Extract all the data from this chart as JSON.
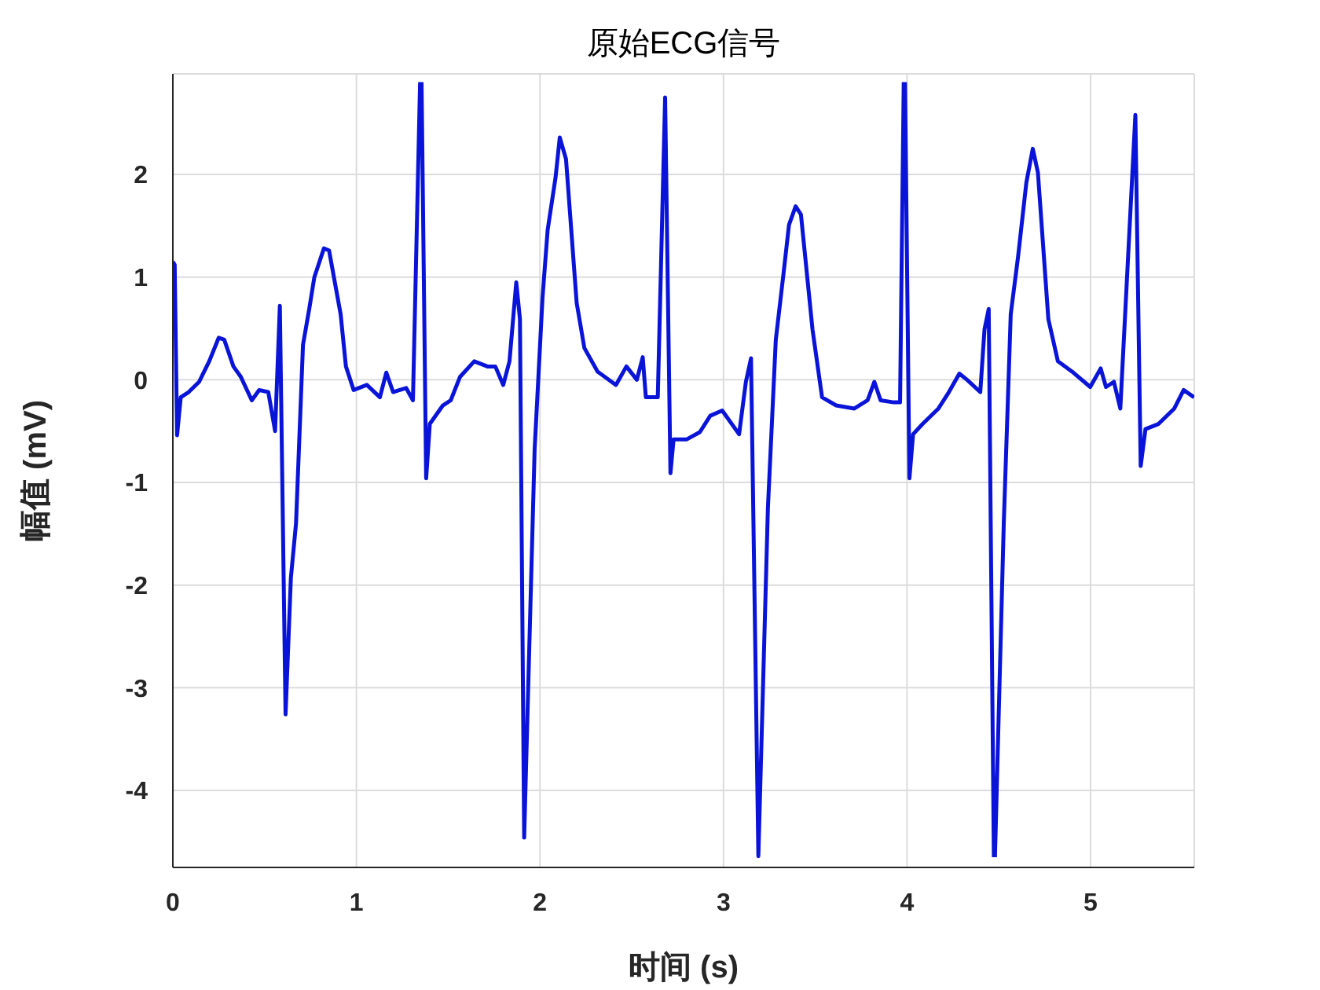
{
  "chart_data": {
    "type": "line",
    "title": "原始ECG信号",
    "xlabel": "时间 (s)",
    "ylabel": "幅值 (mV)",
    "x": [
      0,
      0.01,
      0.023,
      0.043,
      0.086,
      0.143,
      0.198,
      0.25,
      0.28,
      0.33,
      0.37,
      0.43,
      0.47,
      0.52,
      0.557,
      0.583,
      0.614,
      0.643,
      0.671,
      0.709,
      0.743,
      0.771,
      0.823,
      0.851,
      0.914,
      0.943,
      0.985,
      1.057,
      1.128,
      1.163,
      1.2,
      1.271,
      1.308,
      1.347,
      1.351,
      1.355,
      1.38,
      1.4,
      1.471,
      1.514,
      1.565,
      1.642,
      1.714,
      1.757,
      1.8,
      1.834,
      1.871,
      1.891,
      1.914,
      1.971,
      2.014,
      2.042,
      2.085,
      2.108,
      2.142,
      2.2,
      2.242,
      2.314,
      2.414,
      2.471,
      2.528,
      2.56,
      2.577,
      2.642,
      2.682,
      2.711,
      2.728,
      2.8,
      2.871,
      2.928,
      2.993,
      3.085,
      3.122,
      3.15,
      3.19,
      3.242,
      3.285,
      3.328,
      3.357,
      3.393,
      3.422,
      3.485,
      3.537,
      3.614,
      3.713,
      3.785,
      3.822,
      3.856,
      3.928,
      3.962,
      3.982,
      3.985,
      3.989,
      4.013,
      4.033,
      4.085,
      4.171,
      4.228,
      4.285,
      4.327,
      4.399,
      4.422,
      4.445,
      4.473,
      4.476,
      4.479,
      4.527,
      4.565,
      4.605,
      4.65,
      4.685,
      4.713,
      4.77,
      4.822,
      4.899,
      4.998,
      5.055,
      5.084,
      5.127,
      5.162,
      5.244,
      5.273,
      5.299,
      5.37,
      5.456,
      5.507,
      5.564
    ],
    "values": [
      1.15,
      1.12,
      -0.54,
      -0.17,
      -0.12,
      -0.02,
      0.18,
      0.41,
      0.39,
      0.13,
      0.03,
      -0.2,
      -0.1,
      -0.12,
      -0.5,
      0.72,
      -3.26,
      -1.93,
      -1.4,
      0.34,
      0.69,
      1.0,
      1.28,
      1.26,
      0.64,
      0.13,
      -0.1,
      -0.05,
      -0.17,
      0.07,
      -0.12,
      -0.08,
      -0.2,
      2.9,
      null,
      2.9,
      -0.96,
      -0.43,
      -0.25,
      -0.2,
      0.03,
      0.18,
      0.13,
      0.13,
      -0.05,
      0.18,
      0.95,
      0.59,
      -4.46,
      -0.68,
      0.8,
      1.46,
      1.97,
      2.36,
      2.15,
      0.75,
      0.31,
      0.08,
      -0.05,
      0.13,
      0.0,
      0.22,
      -0.17,
      -0.17,
      2.75,
      -0.91,
      -0.58,
      -0.58,
      -0.51,
      -0.35,
      -0.3,
      -0.53,
      -0.02,
      0.21,
      -4.64,
      -1.25,
      0.39,
      1.05,
      1.51,
      1.69,
      1.61,
      0.49,
      -0.17,
      -0.25,
      -0.28,
      -0.2,
      -0.02,
      -0.2,
      -0.22,
      -0.22,
      2.9,
      null,
      2.9,
      -0.96,
      -0.53,
      -0.43,
      -0.28,
      -0.12,
      0.06,
      0.0,
      -0.12,
      0.49,
      0.69,
      -4.65,
      null,
      -4.65,
      -1.4,
      0.64,
      1.2,
      1.92,
      2.25,
      2.02,
      0.59,
      0.18,
      0.08,
      -0.07,
      0.11,
      -0.07,
      -0.02,
      -0.28,
      2.58,
      -0.84,
      -0.48,
      -0.43,
      -0.28,
      -0.1,
      -0.17
    ],
    "color": "#0a14d8",
    "xlim": [
      0,
      5.565
    ],
    "ylim": [
      -4.75,
      2.98
    ],
    "xticks": [
      0,
      1,
      2,
      3,
      4,
      5
    ],
    "yticks": [
      -4,
      -3,
      -2,
      -1,
      0,
      1,
      2
    ],
    "grid": true
  }
}
